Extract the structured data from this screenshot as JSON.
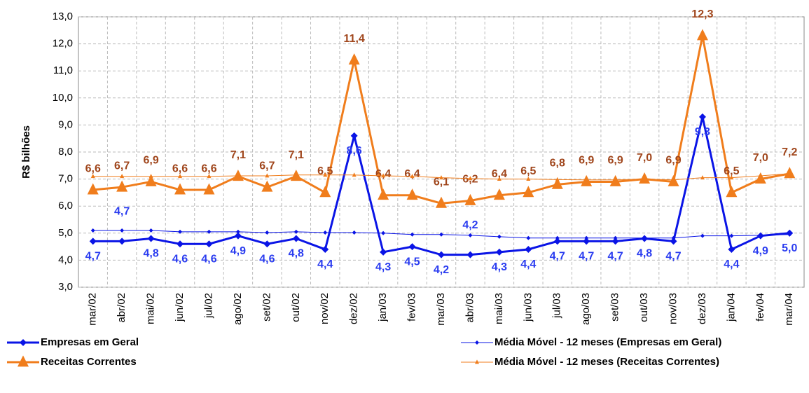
{
  "chart_data": {
    "type": "line",
    "y_label": "R$ bilhões",
    "categories": [
      "mar/02",
      "abr/02",
      "mai/02",
      "jun/02",
      "jul/02",
      "ago/02",
      "set/02",
      "out/02",
      "nov/02",
      "dez/02",
      "jan/03",
      "fev/03",
      "mar/03",
      "abr/03",
      "mai/03",
      "jun/03",
      "jul/03",
      "ago/03",
      "set/03",
      "out/03",
      "nov/03",
      "dez/03",
      "jan/04",
      "fev/04",
      "mar/04"
    ],
    "ylim": [
      3,
      13
    ],
    "yticks": [
      {
        "value": 3,
        "label": "3,0"
      },
      {
        "value": 4,
        "label": "4,0"
      },
      {
        "value": 5,
        "label": "5,0"
      },
      {
        "value": 6,
        "label": "6,0"
      },
      {
        "value": 7,
        "label": "7,0"
      },
      {
        "value": 8,
        "label": "8,0"
      },
      {
        "value": 9,
        "label": "9,0"
      },
      {
        "value": 10,
        "label": "10,0"
      },
      {
        "value": 11,
        "label": "11,0"
      },
      {
        "value": 12,
        "label": "12,0"
      },
      {
        "value": 13,
        "label": "13,0"
      }
    ],
    "grid": true,
    "series": [
      {
        "name": "Empresas em Geral",
        "color": "#0a14e6",
        "label_color": "#2a3cf0",
        "marker": "diamond",
        "line_width": 3,
        "values": [
          4.7,
          4.7,
          4.8,
          4.6,
          4.6,
          4.9,
          4.6,
          4.8,
          4.4,
          8.6,
          4.3,
          4.5,
          4.2,
          4.2,
          4.3,
          4.4,
          4.7,
          4.7,
          4.7,
          4.8,
          4.7,
          9.3,
          4.4,
          4.9,
          5.0
        ],
        "value_labels": [
          "4,7",
          "4,7",
          "4,8",
          "4,6",
          "4,6",
          "4,9",
          "4,6",
          "4,8",
          "4,4",
          "8,6",
          "4,3",
          "4,5",
          "4,2",
          "4,2",
          "4,3",
          "4,4",
          "4,7",
          "4,7",
          "4,7",
          "4,8",
          "4,7",
          "9,3",
          "4,4",
          "4,9",
          "5,0"
        ]
      },
      {
        "name": "Média Móvel - 12 meses (Empresas em Geral)",
        "color": "#0a14e6",
        "marker": "diamond",
        "line_width": 1,
        "values": [
          5.1,
          5.1,
          5.1,
          5.05,
          5.05,
          5.05,
          5.02,
          5.05,
          5.02,
          5.02,
          5.0,
          4.95,
          4.95,
          4.92,
          4.87,
          4.82,
          4.82,
          4.82,
          4.82,
          4.82,
          4.82,
          4.9,
          4.9,
          4.92,
          4.95
        ]
      },
      {
        "name": "Receitas Correntes",
        "color": "#f07d1c",
        "label_color": "#a0461c",
        "marker": "triangle",
        "line_width": 3,
        "values": [
          6.6,
          6.7,
          6.9,
          6.6,
          6.6,
          7.1,
          6.7,
          7.1,
          6.5,
          11.4,
          6.4,
          6.4,
          6.1,
          6.2,
          6.4,
          6.5,
          6.8,
          6.9,
          6.9,
          7.0,
          6.9,
          12.3,
          6.5,
          7.0,
          7.2
        ],
        "value_labels": [
          "6,6",
          "6,7",
          "6,9",
          "6,6",
          "6,6",
          "7,1",
          "6,7",
          "7,1",
          "6,5",
          "11,4",
          "6,4",
          "6,4",
          "6,1",
          "6,2",
          "6,4",
          "6,5",
          "6,8",
          "6,9",
          "6,9",
          "7,0",
          "6,9",
          "12,3",
          "6,5",
          "7,0",
          "7,2"
        ]
      },
      {
        "name": "Média Móvel - 12 meses (Receitas Correntes)",
        "color": "#f07d1c",
        "marker": "triangle",
        "line_width": 1,
        "values": [
          7.1,
          7.1,
          7.1,
          7.1,
          7.1,
          7.12,
          7.12,
          7.15,
          7.15,
          7.15,
          7.12,
          7.1,
          7.05,
          7.02,
          7.0,
          7.0,
          6.98,
          6.97,
          6.97,
          7.0,
          6.97,
          7.05,
          7.05,
          7.12,
          7.2
        ]
      }
    ]
  }
}
